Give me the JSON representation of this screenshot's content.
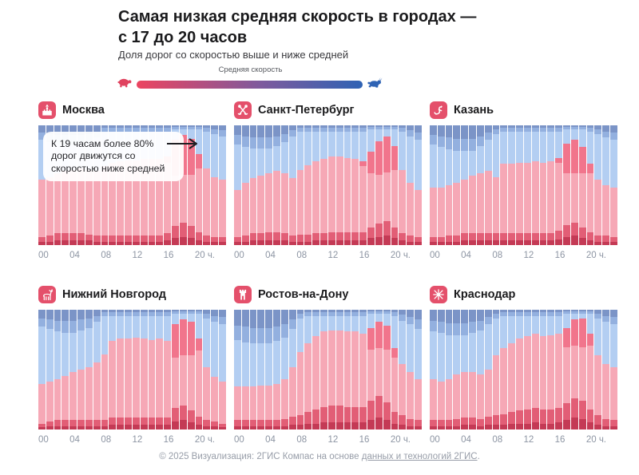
{
  "page": {
    "title_line1": "Самая низкая средняя скорость в городах —",
    "title_line2": "с 17 до 20 часов",
    "subtitle": "Доля дорог со скоростью выше и ниже средней",
    "legend": {
      "label": "Средняя скорость",
      "left_icon": "turtle-icon",
      "right_icon": "hare-icon",
      "gradient_left": "#ec4560",
      "gradient_mid": "#7e5a9d",
      "gradient_right": "#2f63b4"
    },
    "annotation": "К 19 часам более 80% дорог движутся со скоростью ниже средней",
    "footer_prefix": "© 2025 Визуализация: 2ГИС Компас на основе ",
    "footer_link": "данных и технологий 2ГИС",
    "footer_suffix": "."
  },
  "axis": {
    "tick_labels": [
      "00",
      "04",
      "08",
      "12",
      "16",
      "20 ч."
    ],
    "tick_hours": [
      0,
      4,
      8,
      12,
      16,
      20
    ]
  },
  "colors": {
    "band_darkest_red": "#c43a55",
    "band_dark_red": "#e25e76",
    "band_light_pink": "#f6a8b6",
    "band_mid_pink": "#f1758c",
    "band_light_blue": "#b3cef2",
    "band_mid_blue": "#93b0df",
    "band_dark_blue": "#7b94c7",
    "emblem_bg": "#e4506b",
    "annotation_arrow": "#1f1f23"
  },
  "bands_order_bottom_to_top": [
    "darkest_red",
    "dark_red",
    "light_pink",
    "mid_pink",
    "light_blue",
    "mid_blue",
    "dark_blue"
  ],
  "bands_meaning": "pink bands = share of roads with speed below average, blue bands = above average, % of roads per hour 00-23",
  "chart_data": [
    {
      "type": "bar",
      "stacked": true,
      "city": "Москва",
      "emblem": "kremlin-icon",
      "x": "hour 0-23",
      "ylim": [
        0,
        100
      ],
      "bands": {
        "darkest_red": [
          3,
          3,
          4,
          4,
          4,
          4,
          4,
          3,
          3,
          3,
          3,
          3,
          3,
          3,
          3,
          3,
          4,
          6,
          7,
          6,
          4,
          3,
          3,
          3
        ],
        "dark_red": [
          4,
          5,
          6,
          6,
          6,
          6,
          5,
          5,
          5,
          5,
          5,
          5,
          5,
          5,
          5,
          5,
          6,
          10,
          12,
          10,
          7,
          5,
          4,
          4
        ],
        "light_pink": [
          48,
          49,
          50,
          52,
          53,
          54,
          54,
          54,
          58,
          61,
          62,
          63,
          63,
          64,
          64,
          64,
          59,
          42,
          40,
          43,
          53,
          56,
          50,
          48
        ],
        "mid_pink": [
          0,
          0,
          0,
          0,
          0,
          0,
          0,
          0,
          0,
          0,
          0,
          0,
          0,
          0,
          0,
          0,
          5,
          30,
          33,
          30,
          12,
          0,
          0,
          0
        ],
        "light_blue": [
          33,
          29,
          24,
          22,
          21,
          21,
          24,
          28,
          28,
          26,
          25,
          24,
          24,
          23,
          23,
          23,
          21,
          9,
          5,
          8,
          21,
          31,
          36,
          36
        ],
        "mid_blue": [
          6,
          7,
          8,
          8,
          8,
          7,
          6,
          5,
          4,
          3,
          3,
          3,
          3,
          3,
          3,
          3,
          3,
          2,
          2,
          2,
          2,
          3,
          4,
          5
        ],
        "dark_blue": [
          6,
          7,
          8,
          8,
          8,
          8,
          7,
          5,
          2,
          2,
          2,
          2,
          2,
          2,
          2,
          2,
          2,
          1,
          1,
          1,
          1,
          2,
          3,
          4
        ]
      }
    },
    {
      "type": "bar",
      "stacked": true,
      "city": "Санкт-Петербург",
      "emblem": "anchors-icon",
      "x": "hour 0-23",
      "ylim": [
        0,
        100
      ],
      "bands": {
        "darkest_red": [
          3,
          3,
          4,
          4,
          4,
          4,
          4,
          3,
          3,
          3,
          4,
          4,
          4,
          4,
          4,
          4,
          4,
          6,
          7,
          8,
          6,
          4,
          3,
          3
        ],
        "dark_red": [
          4,
          5,
          6,
          6,
          7,
          7,
          6,
          5,
          6,
          6,
          6,
          6,
          7,
          7,
          7,
          7,
          7,
          9,
          11,
          12,
          9,
          6,
          5,
          4
        ],
        "light_pink": [
          39,
          44,
          46,
          48,
          49,
          51,
          50,
          48,
          54,
          58,
          60,
          62,
          63,
          63,
          62,
          61,
          55,
          45,
          41,
          41,
          48,
          53,
          44,
          39
        ],
        "mid_pink": [
          0,
          0,
          0,
          0,
          0,
          0,
          0,
          0,
          0,
          0,
          0,
          0,
          0,
          0,
          0,
          0,
          4,
          18,
          28,
          30,
          20,
          0,
          0,
          0
        ],
        "light_blue": [
          38,
          30,
          25,
          23,
          21,
          21,
          26,
          35,
          32,
          28,
          25,
          23,
          21,
          21,
          22,
          23,
          25,
          19,
          10,
          6,
          14,
          32,
          39,
          42
        ],
        "mid_blue": [
          8,
          9,
          9,
          9,
          9,
          8,
          7,
          5,
          3,
          3,
          3,
          3,
          3,
          3,
          3,
          3,
          3,
          2,
          2,
          2,
          2,
          3,
          5,
          6
        ],
        "dark_blue": [
          8,
          9,
          10,
          10,
          10,
          9,
          7,
          4,
          2,
          2,
          2,
          2,
          2,
          2,
          2,
          2,
          2,
          1,
          1,
          1,
          1,
          2,
          4,
          6
        ]
      }
    },
    {
      "type": "bar",
      "stacked": true,
      "city": "Казань",
      "emblem": "zilant-icon",
      "x": "hour 0-23",
      "ylim": [
        0,
        100
      ],
      "bands": {
        "darkest_red": [
          3,
          3,
          3,
          3,
          4,
          4,
          4,
          4,
          4,
          4,
          4,
          4,
          4,
          4,
          4,
          4,
          5,
          7,
          8,
          6,
          4,
          3,
          3,
          3
        ],
        "dark_red": [
          4,
          4,
          5,
          5,
          6,
          6,
          6,
          6,
          6,
          6,
          6,
          6,
          6,
          6,
          6,
          6,
          7,
          10,
          11,
          9,
          7,
          5,
          5,
          4
        ],
        "light_pink": [
          41,
          41,
          42,
          44,
          45,
          48,
          50,
          52,
          47,
          58,
          58,
          59,
          59,
          60,
          59,
          60,
          57,
          43,
          41,
          45,
          49,
          47,
          42,
          41
        ],
        "mid_pink": [
          0,
          0,
          0,
          0,
          0,
          0,
          0,
          0,
          0,
          0,
          0,
          0,
          0,
          0,
          0,
          0,
          4,
          25,
          28,
          22,
          8,
          0,
          0,
          0
        ],
        "light_blue": [
          36,
          34,
          30,
          27,
          24,
          21,
          23,
          26,
          36,
          27,
          27,
          26,
          26,
          25,
          26,
          25,
          22,
          12,
          9,
          15,
          27,
          38,
          40,
          40
        ],
        "mid_blue": [
          8,
          9,
          10,
          10,
          10,
          10,
          8,
          6,
          4,
          3,
          3,
          3,
          3,
          3,
          3,
          3,
          3,
          2,
          2,
          2,
          3,
          4,
          5,
          6
        ],
        "dark_blue": [
          8,
          9,
          10,
          11,
          11,
          11,
          9,
          6,
          3,
          2,
          2,
          2,
          2,
          2,
          2,
          2,
          2,
          1,
          1,
          1,
          2,
          3,
          5,
          6
        ]
      }
    },
    {
      "type": "bar",
      "stacked": true,
      "city": "Нижний Новгород",
      "emblem": "deer-icon",
      "x": "hour 0-23",
      "ylim": [
        0,
        100
      ],
      "bands": {
        "darkest_red": [
          2,
          3,
          3,
          3,
          3,
          3,
          3,
          3,
          3,
          4,
          4,
          4,
          4,
          4,
          4,
          4,
          4,
          7,
          8,
          6,
          4,
          3,
          3,
          2
        ],
        "dark_red": [
          3,
          4,
          5,
          5,
          5,
          5,
          5,
          5,
          5,
          6,
          6,
          6,
          6,
          6,
          6,
          6,
          6,
          11,
          12,
          10,
          7,
          5,
          4,
          3
        ],
        "light_pink": [
          33,
          33,
          34,
          37,
          40,
          42,
          44,
          48,
          55,
          64,
          66,
          66,
          67,
          66,
          65,
          66,
          64,
          42,
          42,
          46,
          55,
          44,
          37,
          35
        ],
        "mid_pink": [
          0,
          0,
          0,
          0,
          0,
          0,
          0,
          0,
          0,
          0,
          0,
          0,
          0,
          0,
          0,
          0,
          0,
          28,
          30,
          28,
          10,
          0,
          0,
          0
        ],
        "light_blue": [
          48,
          44,
          40,
          36,
          33,
          33,
          33,
          34,
          32,
          21,
          19,
          19,
          18,
          19,
          20,
          19,
          21,
          9,
          5,
          7,
          21,
          41,
          46,
          48
        ],
        "mid_blue": [
          7,
          8,
          9,
          10,
          10,
          9,
          8,
          5,
          3,
          3,
          3,
          3,
          3,
          3,
          3,
          3,
          3,
          2,
          2,
          2,
          2,
          4,
          5,
          6
        ],
        "dark_blue": [
          7,
          8,
          9,
          9,
          9,
          8,
          7,
          5,
          2,
          2,
          2,
          2,
          2,
          2,
          2,
          2,
          2,
          1,
          1,
          1,
          1,
          3,
          5,
          6
        ]
      }
    },
    {
      "type": "bar",
      "stacked": true,
      "city": "Ростов-на-Дону",
      "emblem": "fortress-icon",
      "x": "hour 0-23",
      "ylim": [
        0,
        100
      ],
      "bands": {
        "darkest_red": [
          3,
          3,
          3,
          3,
          3,
          3,
          3,
          4,
          4,
          5,
          5,
          6,
          6,
          6,
          6,
          6,
          6,
          8,
          10,
          8,
          5,
          4,
          3,
          3
        ],
        "dark_red": [
          5,
          5,
          5,
          5,
          5,
          5,
          6,
          7,
          8,
          10,
          12,
          13,
          14,
          14,
          13,
          13,
          13,
          16,
          18,
          15,
          10,
          8,
          6,
          5
        ],
        "light_pink": [
          28,
          28,
          28,
          29,
          29,
          30,
          33,
          41,
          53,
          57,
          61,
          63,
          63,
          63,
          63,
          63,
          61,
          43,
          40,
          44,
          45,
          43,
          39,
          34
        ],
        "mid_pink": [
          0,
          0,
          0,
          0,
          0,
          0,
          0,
          0,
          0,
          0,
          0,
          0,
          0,
          0,
          0,
          0,
          0,
          18,
          22,
          20,
          8,
          0,
          0,
          0
        ],
        "light_blue": [
          39,
          37,
          36,
          35,
          35,
          36,
          35,
          32,
          28,
          23,
          17,
          13,
          12,
          12,
          13,
          13,
          15,
          12,
          7,
          10,
          27,
          36,
          40,
          42
        ],
        "mid_blue": [
          12,
          13,
          13,
          13,
          13,
          12,
          11,
          8,
          4,
          3,
          3,
          3,
          3,
          3,
          3,
          3,
          3,
          2,
          2,
          2,
          3,
          5,
          6,
          8
        ],
        "dark_blue": [
          13,
          14,
          15,
          15,
          15,
          14,
          12,
          8,
          3,
          2,
          2,
          2,
          2,
          2,
          2,
          2,
          2,
          1,
          1,
          1,
          2,
          4,
          6,
          8
        ]
      }
    },
    {
      "type": "bar",
      "stacked": true,
      "city": "Краснодар",
      "emblem": "banner-icon",
      "x": "hour 0-23",
      "ylim": [
        0,
        100
      ],
      "bands": {
        "darkest_red": [
          3,
          3,
          3,
          3,
          4,
          4,
          3,
          4,
          4,
          4,
          5,
          5,
          5,
          6,
          5,
          5,
          6,
          8,
          10,
          9,
          6,
          4,
          3,
          3
        ],
        "dark_red": [
          5,
          5,
          5,
          6,
          6,
          6,
          6,
          7,
          8,
          9,
          10,
          11,
          12,
          12,
          12,
          12,
          12,
          14,
          16,
          15,
          11,
          8,
          6,
          5
        ],
        "light_pink": [
          34,
          32,
          34,
          37,
          38,
          38,
          37,
          39,
          50,
          55,
          57,
          60,
          61,
          62,
          61,
          62,
          62,
          47,
          44,
          45,
          53,
          50,
          46,
          44
        ],
        "mid_pink": [
          0,
          0,
          0,
          0,
          0,
          0,
          0,
          0,
          0,
          0,
          0,
          0,
          0,
          0,
          0,
          0,
          0,
          16,
          22,
          24,
          10,
          0,
          0,
          0
        ],
        "light_blue": [
          40,
          41,
          37,
          33,
          31,
          33,
          37,
          38,
          31,
          27,
          23,
          19,
          17,
          15,
          17,
          16,
          15,
          12,
          5,
          4,
          17,
          31,
          35,
          36
        ],
        "mid_blue": [
          9,
          9,
          10,
          10,
          10,
          9,
          8,
          6,
          4,
          3,
          3,
          3,
          3,
          3,
          3,
          3,
          3,
          2,
          2,
          2,
          2,
          4,
          5,
          6
        ],
        "dark_blue": [
          9,
          10,
          11,
          11,
          11,
          10,
          9,
          6,
          3,
          2,
          2,
          2,
          2,
          2,
          2,
          2,
          2,
          1,
          1,
          1,
          1,
          3,
          5,
          6
        ]
      }
    }
  ]
}
